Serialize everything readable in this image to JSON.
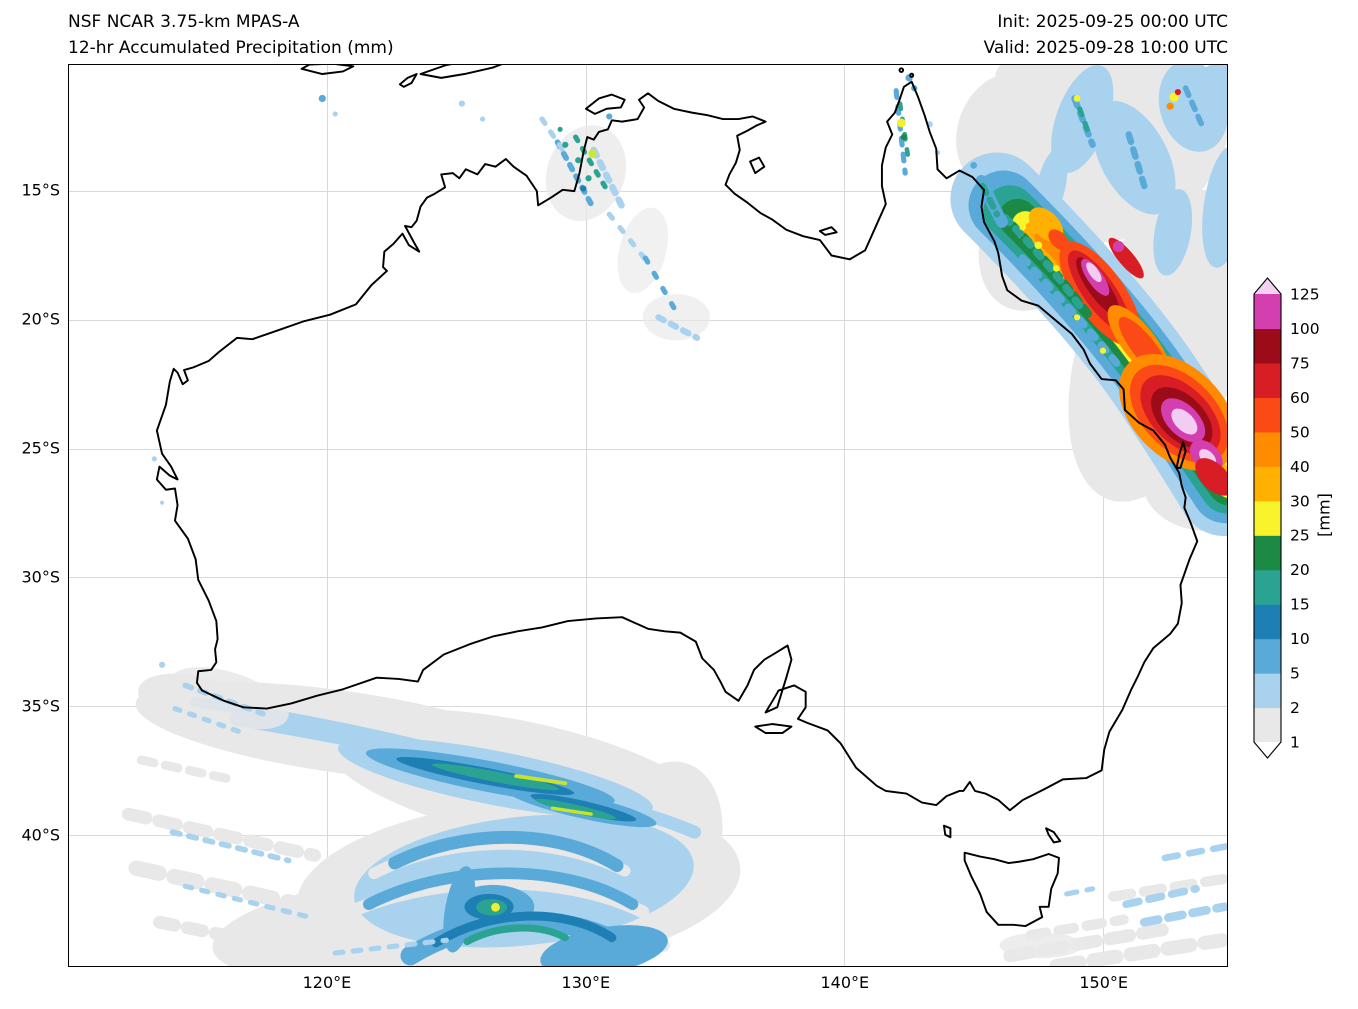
{
  "header": {
    "title_line1": "NSF NCAR 3.75-km MPAS-A",
    "title_line2": "12-hr Accumulated Precipitation (mm)",
    "init_line": "Init: 2025-09-25 00:00 UTC",
    "valid_line": "Valid: 2025-09-28 10:00 UTC"
  },
  "chart_data": {
    "type": "heatmap",
    "title": "12-hr Accumulated Precipitation (mm)",
    "model": "NSF NCAR 3.75-km MPAS-A",
    "init": "2025-09-25 00:00 UTC",
    "valid": "2025-09-28 10:00 UTC",
    "region": "Australia",
    "projection": "plate-carree",
    "lon_range_e": [
      110.0,
      154.8
    ],
    "lat_range_s": [
      10.1,
      45.1
    ],
    "grid": true,
    "x_ticks": [
      {
        "value": 120,
        "label": "120°E"
      },
      {
        "value": 130,
        "label": "130°E"
      },
      {
        "value": 140,
        "label": "140°E"
      },
      {
        "value": 150,
        "label": "150°E"
      }
    ],
    "y_ticks": [
      {
        "value": 15,
        "label": "15°S"
      },
      {
        "value": 20,
        "label": "20°S"
      },
      {
        "value": 25,
        "label": "25°S"
      },
      {
        "value": 30,
        "label": "30°S"
      },
      {
        "value": 35,
        "label": "35°S"
      },
      {
        "value": 40,
        "label": "40°S"
      }
    ],
    "colorbar": {
      "unit_label": "[mm]",
      "levels": [
        1,
        2,
        5,
        10,
        15,
        20,
        25,
        30,
        40,
        50,
        60,
        75,
        100,
        125
      ],
      "colors": [
        "#e8e8e8",
        "#a9d2ef",
        "#5aaad9",
        "#1e7fb4",
        "#2aa392",
        "#1c8a44",
        "#f8f32b",
        "#ffb000",
        "#ff8b00",
        "#fb4a15",
        "#d81e24",
        "#9c0c18",
        "#d33fae"
      ],
      "under_color": "#ffffff",
      "over_color": "#f3d3f3"
    },
    "features": [
      {
        "region": "Queensland coast and offshore (146-155°E, 15-27°S)",
        "description": "Intense NW-SE oriented rain band; widespread 30-75 mm with embedded cores exceeding 100-125 mm near 150°E 18°S and 152-154°E 22-25°S"
      },
      {
        "region": "Coral Sea / far northeast (147-155°E, 10-17°S)",
        "description": "Patchy 1-10 mm with isolated 25-60 mm cells"
      },
      {
        "region": "Southern Ocean southwest of the Bight (113-136°E, 34-45°S)",
        "description": "Cyclonic frontal bands; mostly 1-10 mm, streaks of 10-25 mm, isolated 25-30 mm"
      },
      {
        "region": "Top End NT (128-135°E, 12-20°S)",
        "description": "Scattered light showers 1-15 mm"
      },
      {
        "region": "Cape York Peninsula (142-143.5°E, 11-14°S)",
        "description": "Isolated 2-30 mm cells"
      },
      {
        "region": "South and east of Tasmania (146-155°E, 40-45.5°S)",
        "description": "Light streaks 1-5 mm"
      },
      {
        "region": "Offshore southwest WA (113-118°E, 33-36.5°S)",
        "description": "Sparse 1-5 mm showers"
      }
    ]
  }
}
